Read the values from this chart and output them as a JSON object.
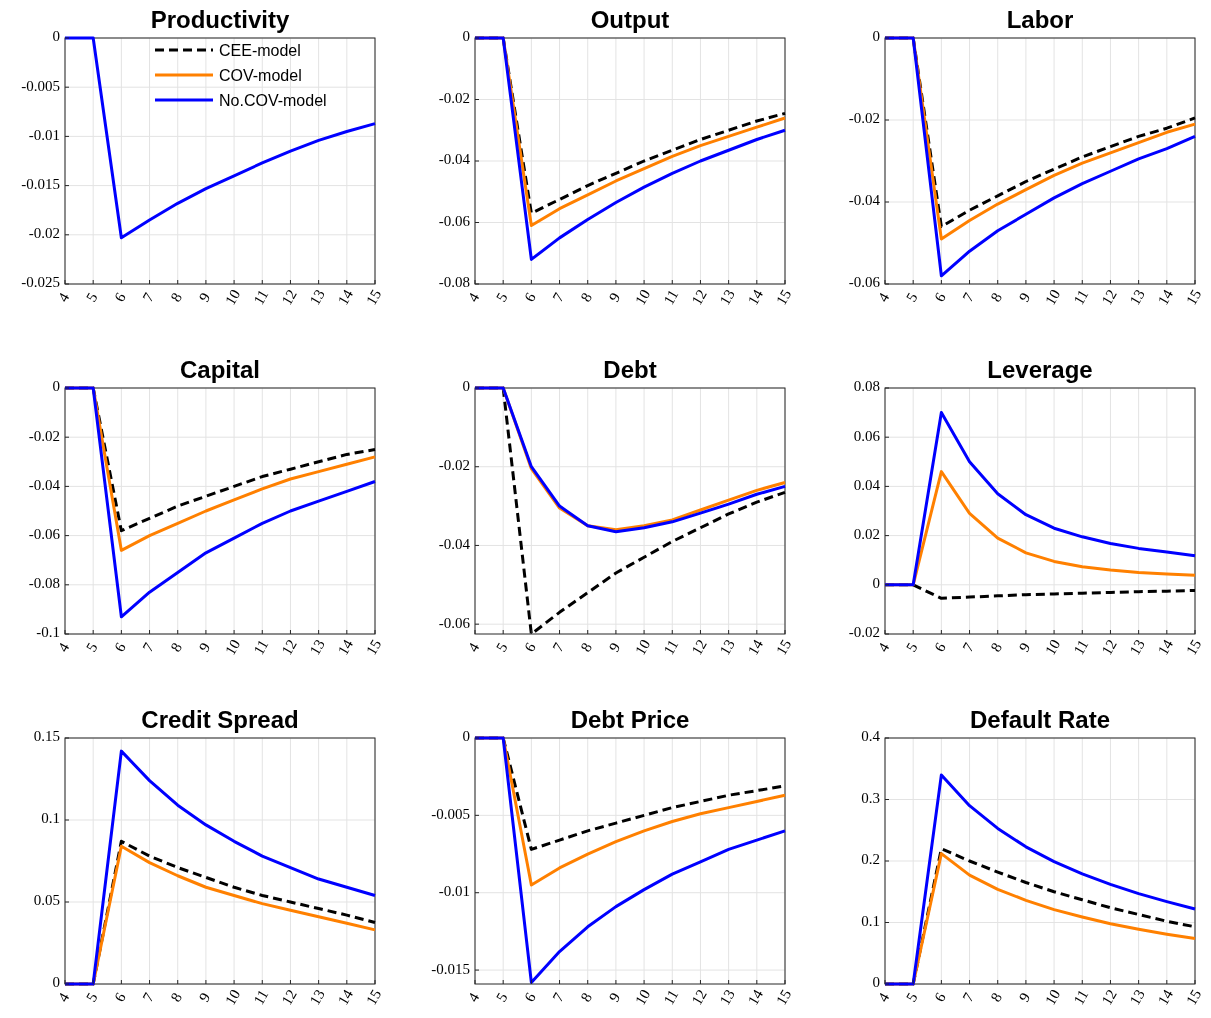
{
  "chart_data": [
    {
      "type": "line",
      "title": "Productivity",
      "x": [
        4,
        5,
        6,
        7,
        8,
        9,
        10,
        11,
        12,
        13,
        14,
        15
      ],
      "xlim": [
        4,
        15
      ],
      "xticks": [
        4,
        5,
        6,
        7,
        8,
        9,
        10,
        11,
        12,
        13,
        14,
        15
      ],
      "ylim": [
        -0.025,
        0
      ],
      "yticks": [
        0,
        -0.005,
        -0.01,
        -0.015,
        -0.02,
        -0.025
      ],
      "grid": true,
      "legend": "top",
      "series": [
        {
          "name": "CEE-model",
          "color": "#000000",
          "line_style": "dashed",
          "values": [
            null,
            null,
            null,
            null,
            null,
            null,
            null,
            null,
            null,
            null,
            null,
            null
          ]
        },
        {
          "name": "COV-model",
          "color": "#ff8000",
          "line_style": "solid",
          "values": [
            null,
            null,
            null,
            null,
            null,
            null,
            null,
            null,
            null,
            null,
            null,
            null
          ]
        },
        {
          "name": "No.COV-model",
          "color": "#0000ff",
          "line_style": "solid",
          "values": [
            0,
            0,
            -0.0203,
            -0.0185,
            -0.0168,
            -0.0153,
            -0.014,
            -0.0127,
            -0.0115,
            -0.0104,
            -0.0095,
            -0.0087
          ]
        }
      ]
    },
    {
      "type": "line",
      "title": "Output",
      "x": [
        4,
        5,
        6,
        7,
        8,
        9,
        10,
        11,
        12,
        13,
        14,
        15
      ],
      "xlim": [
        4,
        15
      ],
      "xticks": [
        4,
        5,
        6,
        7,
        8,
        9,
        10,
        11,
        12,
        13,
        14,
        15
      ],
      "ylim": [
        -0.08,
        0
      ],
      "yticks": [
        0,
        -0.02,
        -0.04,
        -0.06,
        -0.08
      ],
      "grid": true,
      "series": [
        {
          "color": "#000000",
          "line_style": "dashed",
          "values": [
            0,
            0,
            -0.057,
            -0.0525,
            -0.048,
            -0.044,
            -0.04,
            -0.0365,
            -0.033,
            -0.03,
            -0.027,
            -0.0245
          ]
        },
        {
          "color": "#ff8000",
          "line_style": "solid",
          "values": [
            0,
            0,
            -0.061,
            -0.0555,
            -0.051,
            -0.0465,
            -0.0425,
            -0.0385,
            -0.035,
            -0.032,
            -0.029,
            -0.026
          ]
        },
        {
          "color": "#0000ff",
          "line_style": "solid",
          "values": [
            0,
            0,
            -0.072,
            -0.065,
            -0.059,
            -0.0535,
            -0.0485,
            -0.044,
            -0.04,
            -0.0365,
            -0.033,
            -0.03
          ]
        }
      ]
    },
    {
      "type": "line",
      "title": "Labor",
      "x": [
        4,
        5,
        6,
        7,
        8,
        9,
        10,
        11,
        12,
        13,
        14,
        15
      ],
      "xlim": [
        4,
        15
      ],
      "xticks": [
        4,
        5,
        6,
        7,
        8,
        9,
        10,
        11,
        12,
        13,
        14,
        15
      ],
      "ylim": [
        -0.06,
        0
      ],
      "yticks": [
        0,
        -0.02,
        -0.04,
        -0.06
      ],
      "grid": true,
      "series": [
        {
          "color": "#000000",
          "line_style": "dashed",
          "values": [
            0,
            0,
            -0.046,
            -0.042,
            -0.0385,
            -0.035,
            -0.032,
            -0.029,
            -0.0265,
            -0.024,
            -0.022,
            -0.0195
          ]
        },
        {
          "color": "#ff8000",
          "line_style": "solid",
          "values": [
            0,
            0,
            -0.049,
            -0.0445,
            -0.0405,
            -0.037,
            -0.0335,
            -0.0305,
            -0.028,
            -0.0255,
            -0.023,
            -0.021
          ]
        },
        {
          "color": "#0000ff",
          "line_style": "solid",
          "values": [
            0,
            0,
            -0.058,
            -0.052,
            -0.047,
            -0.043,
            -0.039,
            -0.0355,
            -0.0325,
            -0.0295,
            -0.027,
            -0.024
          ]
        }
      ]
    },
    {
      "type": "line",
      "title": "Capital",
      "x": [
        4,
        5,
        6,
        7,
        8,
        9,
        10,
        11,
        12,
        13,
        14,
        15
      ],
      "xlim": [
        4,
        15
      ],
      "xticks": [
        4,
        5,
        6,
        7,
        8,
        9,
        10,
        11,
        12,
        13,
        14,
        15
      ],
      "ylim": [
        -0.1,
        0
      ],
      "yticks": [
        0,
        -0.02,
        -0.04,
        -0.06,
        -0.08,
        -0.1
      ],
      "grid": true,
      "series": [
        {
          "color": "#000000",
          "line_style": "dashed",
          "values": [
            0,
            0,
            -0.058,
            -0.053,
            -0.048,
            -0.044,
            -0.04,
            -0.036,
            -0.033,
            -0.03,
            -0.027,
            -0.025
          ]
        },
        {
          "color": "#ff8000",
          "line_style": "solid",
          "values": [
            0,
            0,
            -0.066,
            -0.06,
            -0.055,
            -0.05,
            -0.0455,
            -0.041,
            -0.037,
            -0.034,
            -0.031,
            -0.028
          ]
        },
        {
          "color": "#0000ff",
          "line_style": "solid",
          "values": [
            0,
            0,
            -0.093,
            -0.083,
            -0.075,
            -0.067,
            -0.061,
            -0.055,
            -0.05,
            -0.046,
            -0.042,
            -0.038
          ]
        }
      ]
    },
    {
      "type": "line",
      "title": "Debt",
      "x": [
        4,
        5,
        6,
        7,
        8,
        9,
        10,
        11,
        12,
        13,
        14,
        15
      ],
      "xlim": [
        4,
        15
      ],
      "xticks": [
        4,
        5,
        6,
        7,
        8,
        9,
        10,
        11,
        12,
        13,
        14,
        15
      ],
      "ylim": [
        -0.0625,
        0
      ],
      "yticks": [
        0,
        -0.02,
        -0.04,
        -0.06
      ],
      "grid": true,
      "series": [
        {
          "color": "#000000",
          "line_style": "dashed",
          "values": [
            0,
            0,
            -0.0625,
            -0.057,
            -0.052,
            -0.047,
            -0.043,
            -0.039,
            -0.0355,
            -0.032,
            -0.029,
            -0.0265
          ]
        },
        {
          "color": "#ff8000",
          "line_style": "solid",
          "values": [
            0,
            0,
            -0.0205,
            -0.0305,
            -0.035,
            -0.036,
            -0.035,
            -0.0335,
            -0.031,
            -0.0285,
            -0.026,
            -0.024
          ]
        },
        {
          "color": "#0000ff",
          "line_style": "solid",
          "values": [
            0,
            0,
            -0.02,
            -0.03,
            -0.035,
            -0.0365,
            -0.0355,
            -0.034,
            -0.0318,
            -0.0295,
            -0.027,
            -0.025
          ]
        }
      ]
    },
    {
      "type": "line",
      "title": "Leverage",
      "x": [
        4,
        5,
        6,
        7,
        8,
        9,
        10,
        11,
        12,
        13,
        14,
        15
      ],
      "xlim": [
        4,
        15
      ],
      "xticks": [
        4,
        5,
        6,
        7,
        8,
        9,
        10,
        11,
        12,
        13,
        14,
        15
      ],
      "ylim": [
        -0.02,
        0.08
      ],
      "yticks": [
        -0.02,
        0,
        0.02,
        0.04,
        0.06,
        0.08
      ],
      "grid": true,
      "series": [
        {
          "color": "#000000",
          "line_style": "dashed",
          "values": [
            0,
            0,
            -0.0055,
            -0.005,
            -0.0045,
            -0.004,
            -0.0037,
            -0.0034,
            -0.0031,
            -0.0028,
            -0.0026,
            -0.0023
          ]
        },
        {
          "color": "#ff8000",
          "line_style": "solid",
          "values": [
            0,
            0,
            0.046,
            0.029,
            0.019,
            0.013,
            0.0095,
            0.0073,
            0.006,
            0.005,
            0.0044,
            0.0039
          ]
        },
        {
          "color": "#0000ff",
          "line_style": "solid",
          "values": [
            0,
            0,
            0.07,
            0.05,
            0.037,
            0.0285,
            0.023,
            0.0195,
            0.0168,
            0.0148,
            0.0133,
            0.0118
          ]
        }
      ]
    },
    {
      "type": "line",
      "title": "Credit Spread",
      "x": [
        4,
        5,
        6,
        7,
        8,
        9,
        10,
        11,
        12,
        13,
        14,
        15
      ],
      "xlim": [
        4,
        15
      ],
      "xticks": [
        4,
        5,
        6,
        7,
        8,
        9,
        10,
        11,
        12,
        13,
        14,
        15
      ],
      "ylim": [
        0,
        0.15
      ],
      "yticks": [
        0,
        0.05,
        0.1,
        0.15
      ],
      "grid": true,
      "series": [
        {
          "color": "#000000",
          "line_style": "dashed",
          "values": [
            0,
            0,
            0.087,
            0.078,
            0.071,
            0.065,
            0.059,
            0.054,
            0.05,
            0.046,
            0.042,
            0.0375
          ]
        },
        {
          "color": "#ff8000",
          "line_style": "solid",
          "values": [
            0,
            0,
            0.084,
            0.074,
            0.066,
            0.059,
            0.054,
            0.049,
            0.045,
            0.041,
            0.037,
            0.033
          ]
        },
        {
          "color": "#0000ff",
          "line_style": "solid",
          "values": [
            0,
            0,
            0.142,
            0.124,
            0.109,
            0.097,
            0.087,
            0.078,
            0.071,
            0.064,
            0.059,
            0.054
          ]
        }
      ]
    },
    {
      "type": "line",
      "title": "Debt Price",
      "x": [
        4,
        5,
        6,
        7,
        8,
        9,
        10,
        11,
        12,
        13,
        14,
        15
      ],
      "xlim": [
        4,
        15
      ],
      "xticks": [
        4,
        5,
        6,
        7,
        8,
        9,
        10,
        11,
        12,
        13,
        14,
        15
      ],
      "ylim": [
        -0.0159,
        0
      ],
      "yticks": [
        0,
        -0.005,
        -0.01,
        -0.015
      ],
      "grid": true,
      "series": [
        {
          "color": "#000000",
          "line_style": "dashed",
          "values": [
            0,
            0,
            -0.0072,
            -0.0066,
            -0.006,
            -0.0055,
            -0.005,
            -0.0045,
            -0.0041,
            -0.0037,
            -0.0034,
            -0.0031
          ]
        },
        {
          "color": "#ff8000",
          "line_style": "solid",
          "values": [
            0,
            0,
            -0.0095,
            -0.0084,
            -0.0075,
            -0.0067,
            -0.006,
            -0.0054,
            -0.0049,
            -0.0045,
            -0.0041,
            -0.0037
          ]
        },
        {
          "color": "#0000ff",
          "line_style": "solid",
          "values": [
            0,
            0,
            -0.0158,
            -0.0138,
            -0.0122,
            -0.0109,
            -0.0098,
            -0.0088,
            -0.008,
            -0.0072,
            -0.0066,
            -0.006
          ]
        }
      ]
    },
    {
      "type": "line",
      "title": "Default Rate",
      "x": [
        4,
        5,
        6,
        7,
        8,
        9,
        10,
        11,
        12,
        13,
        14,
        15
      ],
      "xlim": [
        4,
        15
      ],
      "xticks": [
        4,
        5,
        6,
        7,
        8,
        9,
        10,
        11,
        12,
        13,
        14,
        15
      ],
      "ylim": [
        0,
        0.4
      ],
      "yticks": [
        0,
        0.1,
        0.2,
        0.3,
        0.4
      ],
      "grid": true,
      "series": [
        {
          "color": "#000000",
          "line_style": "dashed",
          "values": [
            0,
            0,
            0.22,
            0.2,
            0.182,
            0.165,
            0.15,
            0.137,
            0.124,
            0.113,
            0.102,
            0.093
          ]
        },
        {
          "color": "#ff8000",
          "line_style": "solid",
          "values": [
            0,
            0,
            0.212,
            0.177,
            0.154,
            0.136,
            0.121,
            0.109,
            0.098,
            0.089,
            0.081,
            0.074
          ]
        },
        {
          "color": "#0000ff",
          "line_style": "solid",
          "values": [
            0,
            0,
            0.34,
            0.29,
            0.253,
            0.223,
            0.199,
            0.179,
            0.162,
            0.147,
            0.134,
            0.122
          ]
        }
      ]
    }
  ]
}
